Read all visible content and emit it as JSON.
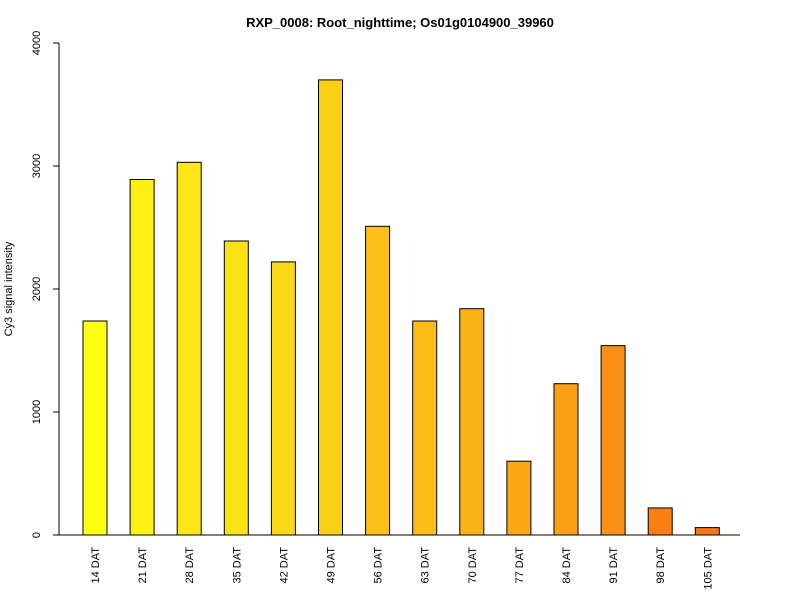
{
  "chart_data": {
    "type": "bar",
    "title": "RXP_0008: Root_nighttime; Os01g0104900_39960",
    "xlabel": "",
    "ylabel": "Cy3 signal intensity",
    "ylim": [
      0,
      4000
    ],
    "yticks": [
      "0",
      "1000",
      "2000",
      "3000",
      "4000"
    ],
    "grid": false,
    "legend": "none",
    "categories": [
      "14 DAT",
      "21 DAT",
      "28 DAT",
      "35 DAT",
      "42 DAT",
      "49 DAT",
      "56 DAT",
      "63 DAT",
      "70 DAT",
      "77 DAT",
      "84 DAT",
      "91 DAT",
      "98 DAT",
      "105 DAT"
    ],
    "values": [
      1740,
      2890,
      3030,
      2390,
      2220,
      3700,
      2510,
      1740,
      1840,
      600,
      1230,
      1540,
      220,
      60
    ],
    "colors": [
      "#ffff14",
      "#fcf014",
      "#fbe715",
      "#fbe214",
      "#fad816",
      "#fad016",
      "#fbc116",
      "#fbbc14",
      "#fab316",
      "#fca716",
      "#fa9f14",
      "#fa9014",
      "#fa8014",
      "#fa7614"
    ]
  }
}
